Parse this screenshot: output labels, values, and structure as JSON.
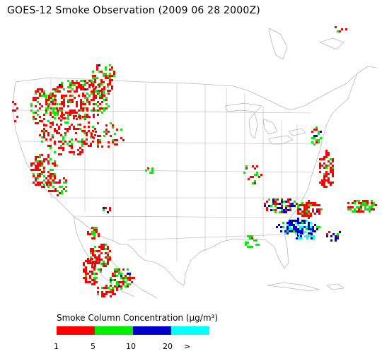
{
  "title": "GOES-12 Smoke Observation (2009 06 28  2000Z)",
  "legend": {
    "title": "Smoke Column Concentration (μg/m³)",
    "colors": [
      "#ff0000",
      "#00ee00",
      "#0000cc",
      "#00ffff"
    ],
    "ticks": [
      "1",
      "5",
      "10",
      "20",
      ">"
    ]
  }
}
